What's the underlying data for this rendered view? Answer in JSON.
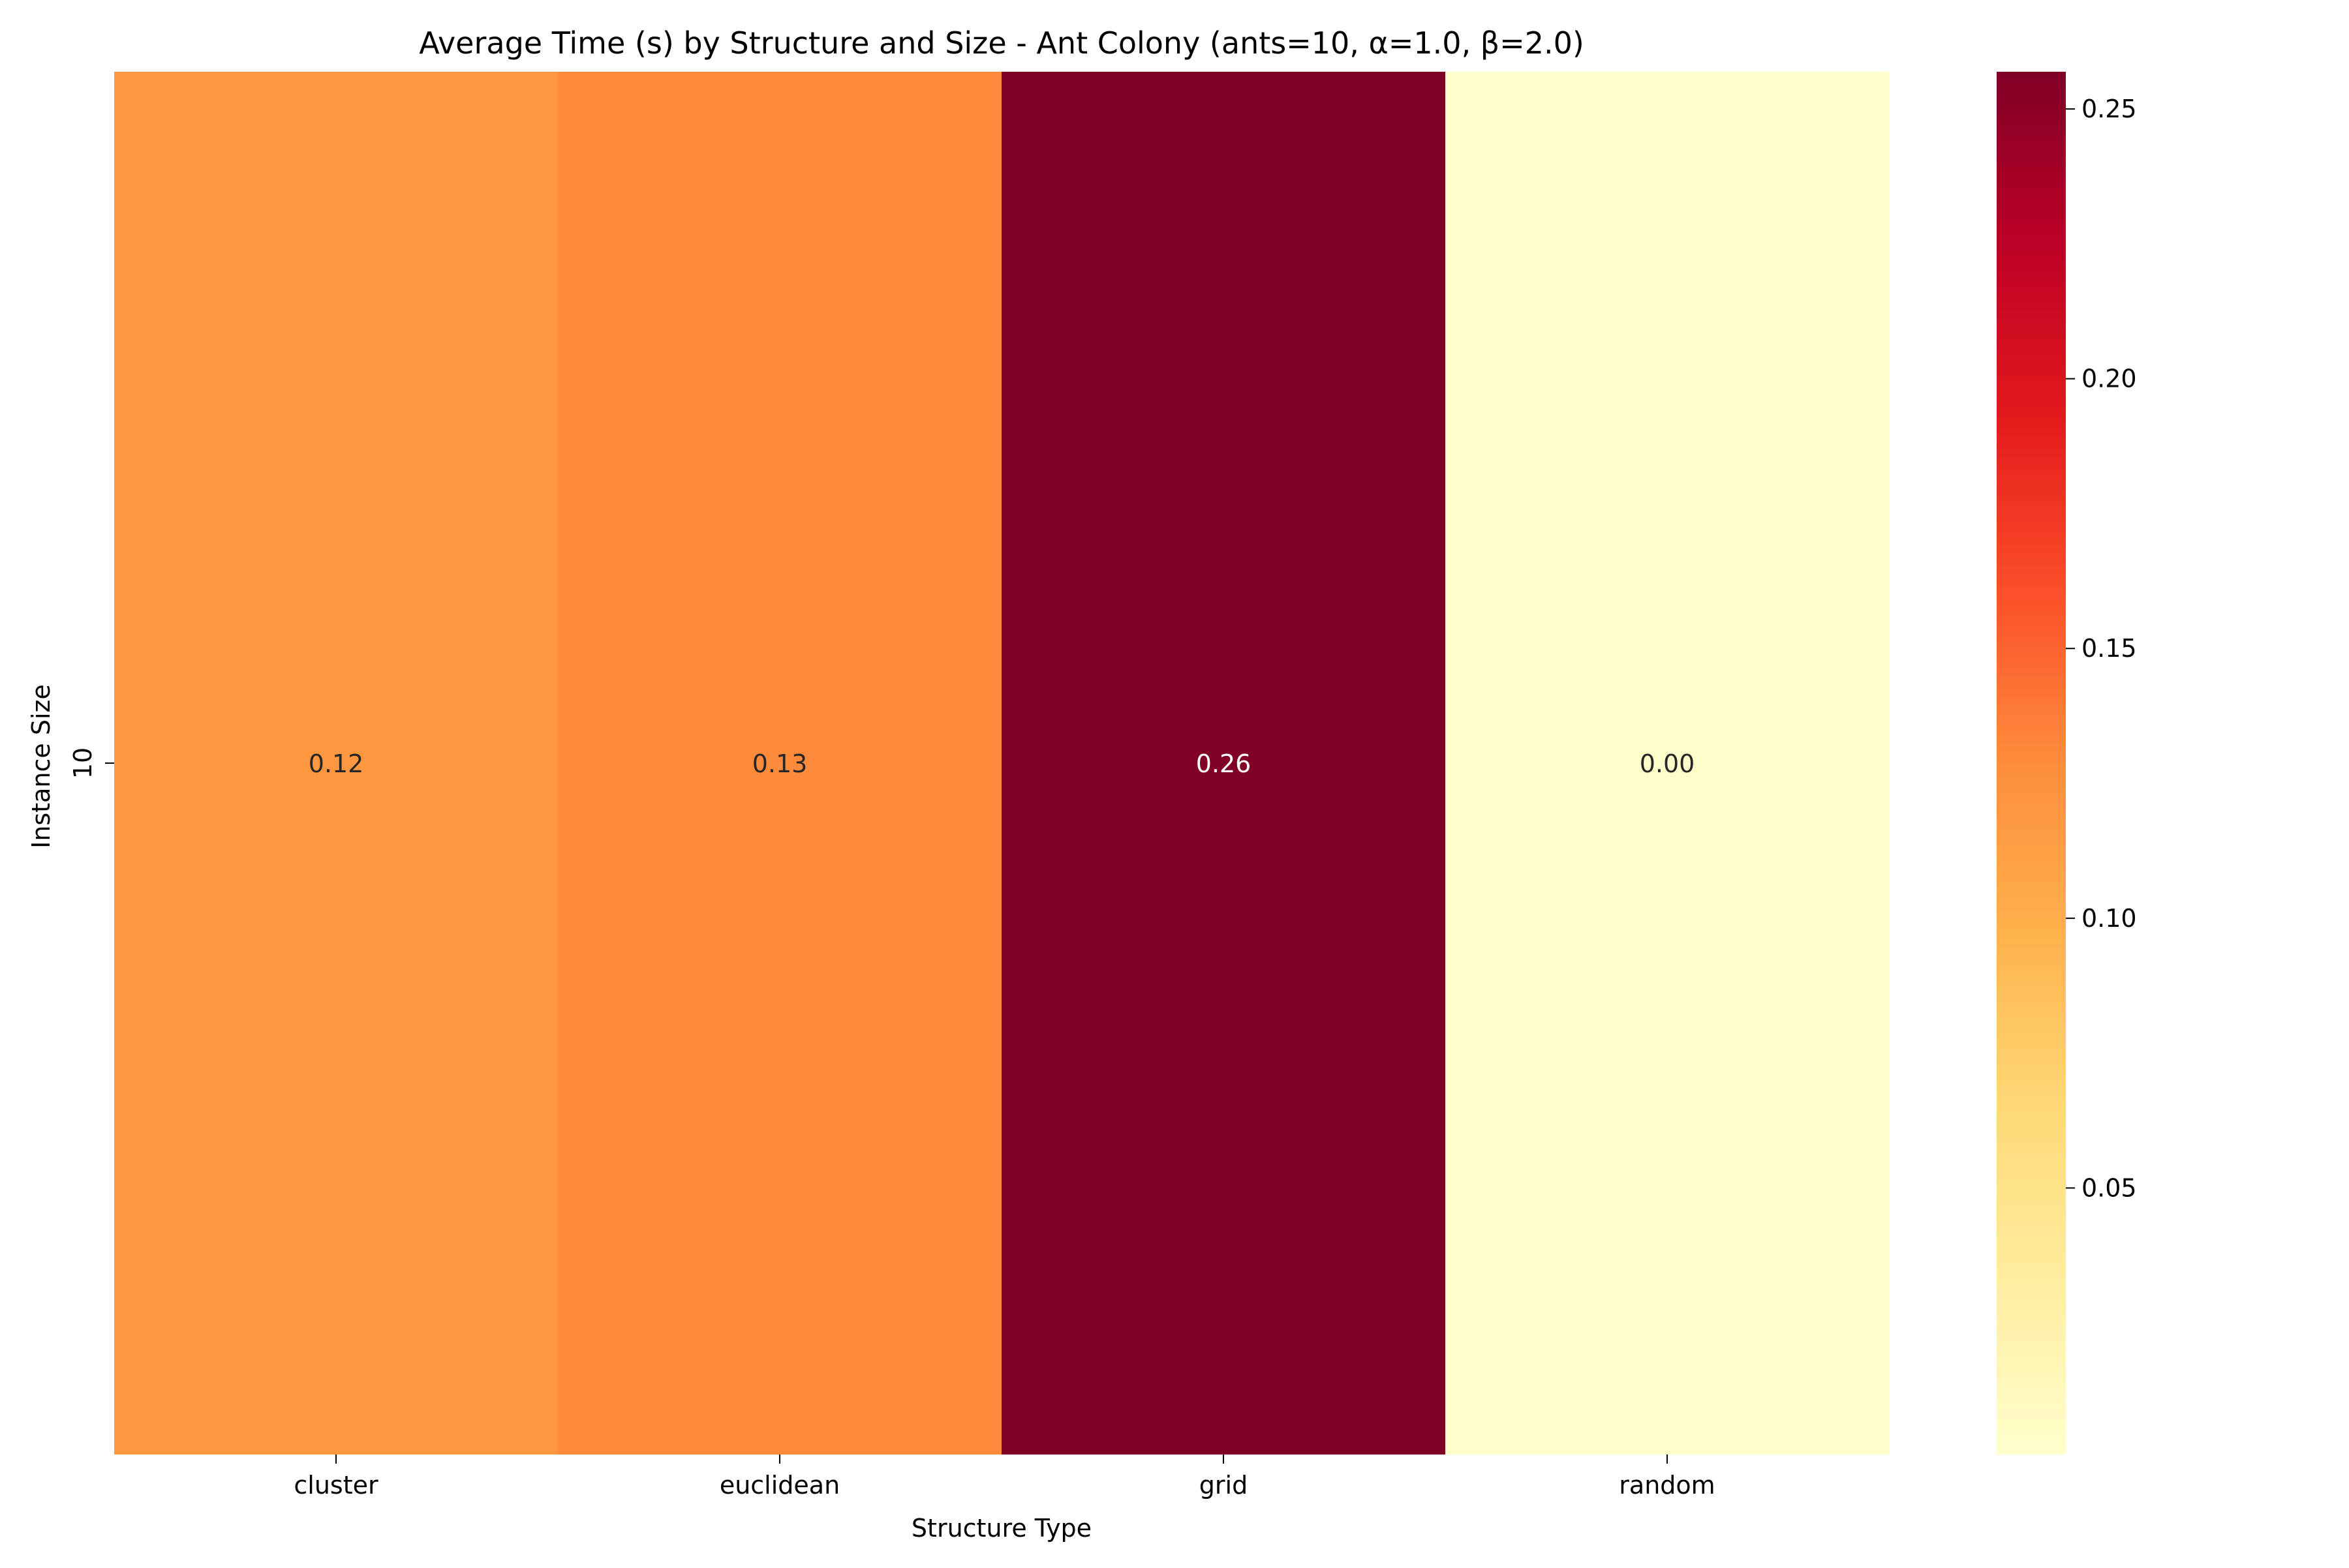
{
  "chart_data": {
    "type": "heatmap",
    "title": "Average Time (s) by Structure and Size - Ant Colony (ants=10, α=1.0, β=2.0)",
    "xlabel": "Structure Type",
    "ylabel": "Instance Size",
    "x_categories": [
      "cluster",
      "euclidean",
      "grid",
      "random"
    ],
    "y_categories": [
      "10"
    ],
    "values": [
      [
        0.12,
        0.13,
        0.26,
        0.0
      ]
    ],
    "value_format": "0.00",
    "colormap": "YlOrRd",
    "colorbar": {
      "range": [
        0.0006,
        0.2569
      ],
      "ticks": [
        0.05,
        0.1,
        0.15,
        0.2,
        0.25
      ],
      "tick_labels": [
        "0.05",
        "0.10",
        "0.15",
        "0.20",
        "0.25"
      ]
    },
    "grid": false
  }
}
